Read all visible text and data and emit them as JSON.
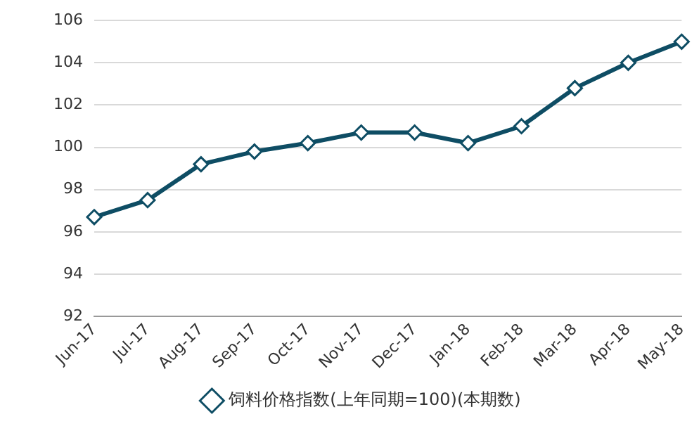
{
  "chart_data": {
    "type": "line",
    "categories": [
      "Jun-17",
      "Jul-17",
      "Aug-17",
      "Sep-17",
      "Oct-17",
      "Nov-17",
      "Dec-17",
      "Jan-18",
      "Feb-18",
      "Mar-18",
      "Apr-18",
      "May-18"
    ],
    "series": [
      {
        "name": "饲料价格指数(上年同期=100)(本期数)",
        "color": "#0e4d64",
        "values": [
          96.7,
          97.5,
          99.2,
          99.8,
          100.2,
          100.7,
          100.7,
          100.2,
          101.0,
          102.8,
          104.0,
          105.0
        ]
      }
    ],
    "ylim": [
      92,
      106
    ],
    "yticks": [
      92,
      94,
      96,
      98,
      100,
      102,
      104,
      106
    ],
    "grid": "y",
    "legend": "bottom",
    "marker": "diamond",
    "line_style": "solid"
  }
}
